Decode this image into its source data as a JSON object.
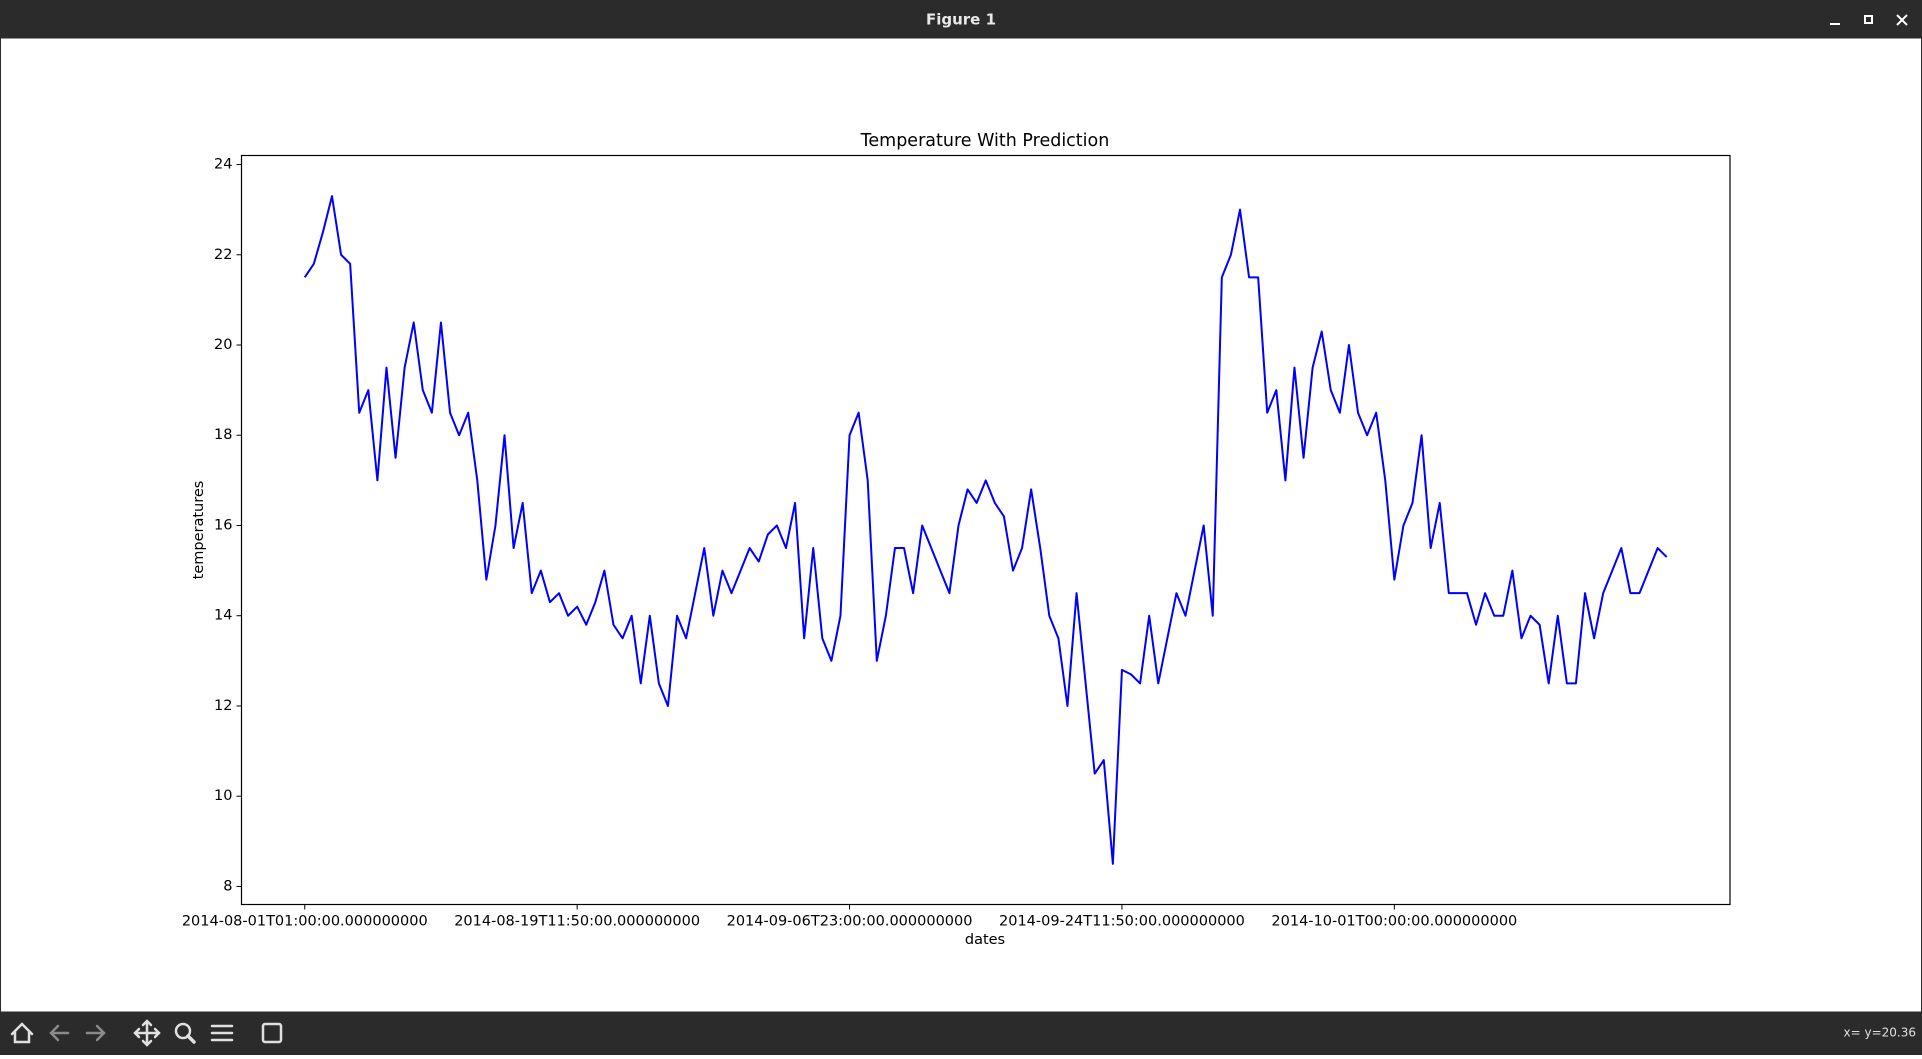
{
  "window": {
    "title": "Figure 1",
    "status": "x= y=20.36"
  },
  "chart_data": {
    "type": "line",
    "title": "Temperature With Prediction",
    "x_label": "dates",
    "y_label": "temperatures",
    "categories": [
      "2014-08-01T01:00:00.000000000",
      null,
      null,
      null,
      null,
      null,
      null,
      null,
      null,
      null,
      null,
      null,
      null,
      null,
      null,
      null,
      null,
      null,
      null,
      null,
      null,
      null,
      null,
      null,
      null,
      null,
      null,
      null,
      null,
      null,
      "2014-08-19T11:50:00.000000000",
      null,
      null,
      null,
      null,
      null,
      null,
      null,
      null,
      null,
      null,
      null,
      null,
      null,
      null,
      null,
      null,
      null,
      null,
      null,
      null,
      null,
      null,
      null,
      null,
      null,
      null,
      null,
      null,
      null,
      "2014-09-06T23:00:00.000000000",
      null,
      null,
      null,
      null,
      null,
      null,
      null,
      null,
      null,
      null,
      null,
      null,
      null,
      null,
      null,
      null,
      null,
      null,
      null,
      null,
      null,
      null,
      null,
      null,
      null,
      null,
      null,
      null,
      null,
      "2014-09-24T11:50:00.000000000",
      null,
      null,
      null,
      null,
      null,
      null,
      null,
      null,
      null,
      null,
      null,
      null,
      null,
      null,
      null,
      null,
      null,
      null,
      null,
      null,
      null,
      null,
      null,
      null,
      null,
      null,
      null,
      null,
      null,
      "2014-10-01T00:00:00.000000000",
      null,
      null,
      null,
      null,
      null,
      null,
      null,
      null,
      null,
      null,
      null,
      null,
      null,
      null,
      null,
      null,
      null,
      null,
      null,
      null,
      null,
      null,
      null,
      null,
      null,
      null,
      null,
      null,
      null,
      null
    ],
    "values": [
      21.5,
      21.8,
      22.5,
      23.3,
      22.0,
      21.8,
      18.5,
      19.0,
      17.0,
      19.5,
      17.5,
      19.5,
      20.5,
      19.0,
      18.5,
      20.5,
      18.5,
      18.0,
      18.5,
      17.0,
      14.8,
      16.0,
      18.0,
      15.5,
      16.5,
      14.5,
      15.0,
      14.3,
      14.5,
      14.0,
      14.2,
      13.8,
      14.3,
      15.0,
      13.8,
      13.5,
      14.0,
      12.5,
      14.0,
      12.5,
      12.0,
      14.0,
      13.5,
      14.5,
      15.5,
      14.0,
      15.0,
      14.5,
      15.0,
      15.5,
      15.2,
      15.8,
      16.0,
      15.5,
      16.5,
      13.5,
      15.5,
      13.5,
      13.0,
      14.0,
      18.0,
      18.5,
      17.0,
      13.0,
      14.0,
      15.5,
      15.5,
      14.5,
      16.0,
      15.5,
      15.0,
      14.5,
      16.0,
      16.8,
      16.5,
      17.0,
      16.5,
      16.2,
      15.0,
      15.5,
      16.8,
      15.5,
      14.0,
      13.5,
      12.0,
      14.5,
      12.5,
      10.5,
      10.8,
      8.5,
      12.8,
      12.7,
      12.5,
      14.0,
      12.5,
      13.5,
      14.5,
      14.0,
      15.0,
      16.0,
      14.0,
      21.5,
      22.0,
      23.0,
      21.5,
      21.5,
      18.5,
      19.0,
      17.0,
      19.5,
      17.5,
      19.5,
      20.3,
      19.0,
      18.5,
      20.0,
      18.5,
      18.0,
      18.5,
      17.0,
      14.8,
      16.0,
      16.5,
      18.0,
      15.5,
      16.5,
      14.5,
      14.5,
      14.5,
      13.8,
      14.5,
      14.0,
      14.0,
      15.0,
      13.5,
      14.0,
      13.8,
      12.5,
      14.0,
      12.5,
      12.5,
      14.5,
      13.5,
      14.5,
      15.0,
      15.5,
      14.5,
      14.5,
      15.0,
      15.5,
      15.3
    ],
    "color": "#0000ff",
    "ylim": [
      7.6,
      24.2
    ],
    "yticks": [
      8,
      10,
      12,
      14,
      16,
      18,
      20,
      22,
      24
    ],
    "grid": false
  }
}
